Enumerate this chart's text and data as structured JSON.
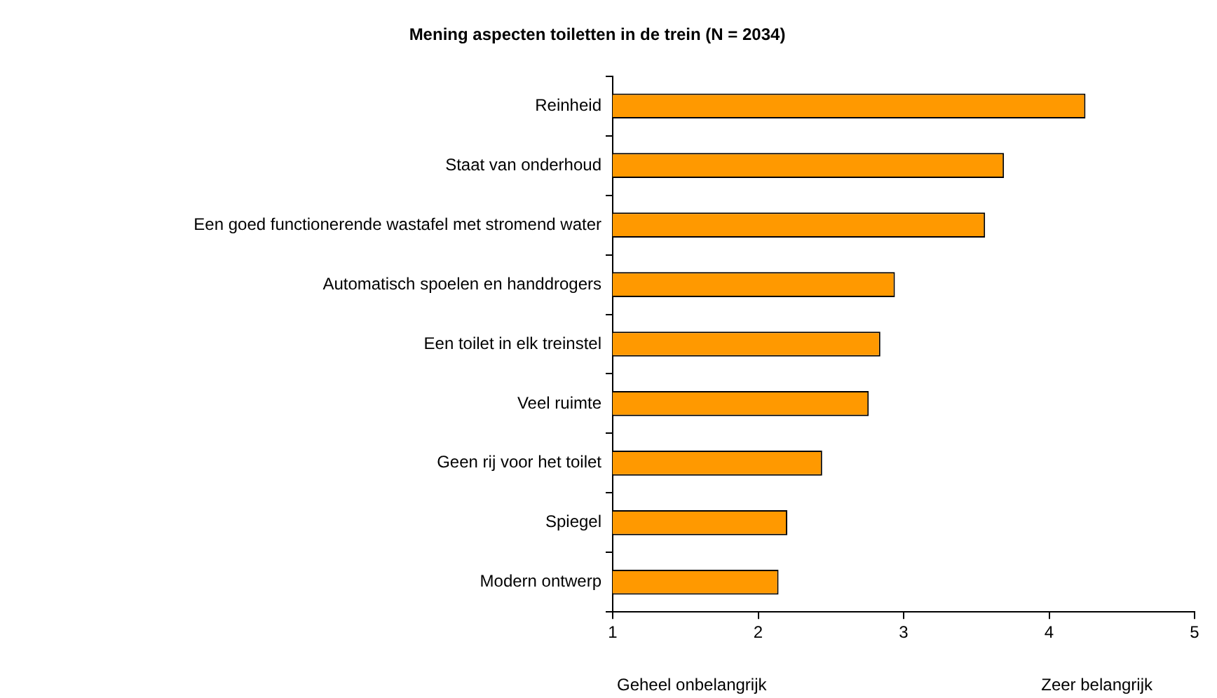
{
  "chart_data": {
    "type": "bar",
    "orientation": "horizontal",
    "title": "Mening aspecten toiletten in de trein (N = 2034)",
    "categories": [
      "Reinheid",
      "Staat van onderhoud",
      "Een goed functionerende wastafel met stromend water",
      "Automatisch spoelen en handdrogers",
      "Een toilet in elk treinstel",
      "Veel ruimte",
      "Geen rij voor het toilet",
      "Spiegel",
      "Modern ontwerp"
    ],
    "values": [
      4.25,
      3.69,
      3.56,
      2.94,
      2.84,
      2.76,
      2.44,
      2.2,
      2.14
    ],
    "color": "#ff9900",
    "xlim": [
      1,
      5
    ],
    "xticks": [
      1,
      2,
      3,
      4,
      5
    ],
    "grid": false,
    "legend": false,
    "annotations": [
      "Geheel onbelangrijk",
      "Zeer belangrijk"
    ]
  }
}
